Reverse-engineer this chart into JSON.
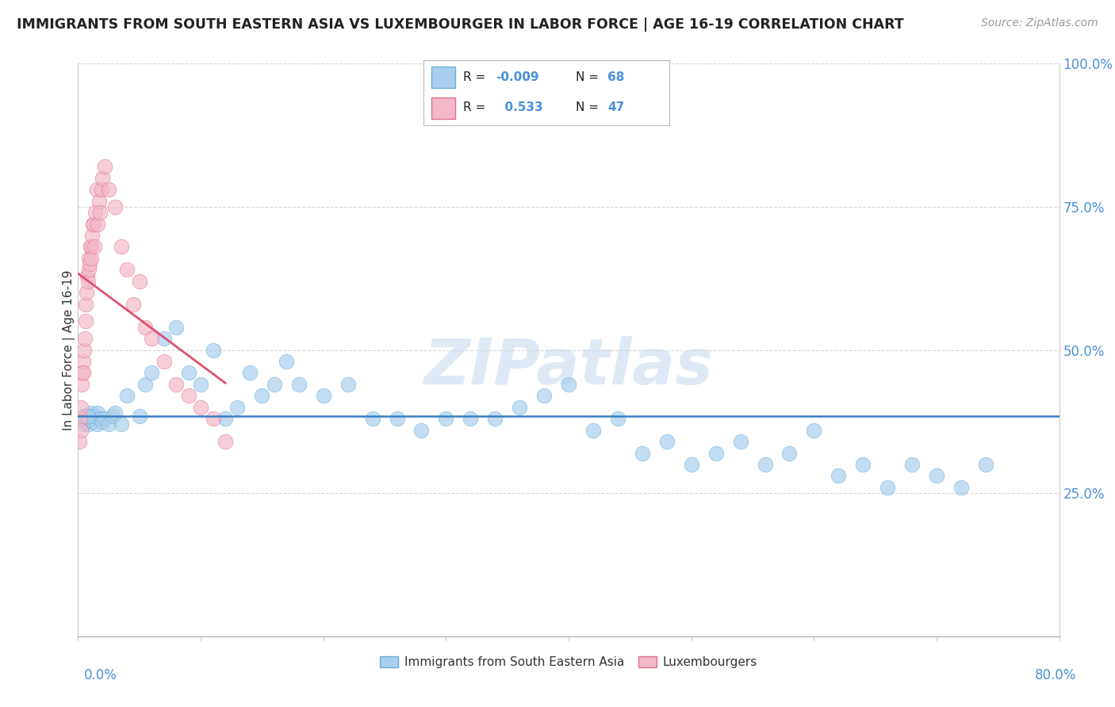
{
  "title": "IMMIGRANTS FROM SOUTH EASTERN ASIA VS LUXEMBOURGER IN LABOR FORCE | AGE 16-19 CORRELATION CHART",
  "source": "Source: ZipAtlas.com",
  "ylabel": "In Labor Force | Age 16-19",
  "watermark": "ZIPatlas",
  "xlim": [
    0.0,
    80.0
  ],
  "ylim": [
    0.0,
    100.0
  ],
  "blue_R": -0.009,
  "blue_N": 68,
  "pink_R": 0.533,
  "pink_N": 47,
  "blue_color": "#aacfee",
  "pink_color": "#f4b8c8",
  "blue_edge_color": "#6aaed6",
  "pink_edge_color": "#e07090",
  "blue_line_color": "#3a7fc1",
  "pink_line_color": "#e05070",
  "legend_label_blue": "Immigrants from South Eastern Asia",
  "legend_label_pink": "Luxembourgers",
  "blue_x": [
    0.3,
    0.4,
    0.5,
    0.6,
    0.7,
    0.8,
    0.9,
    1.0,
    1.1,
    1.2,
    1.3,
    1.5,
    1.6,
    1.8,
    2.0,
    2.2,
    2.5,
    2.8,
    3.0,
    3.5,
    4.0,
    5.0,
    5.5,
    6.0,
    7.0,
    8.0,
    9.0,
    10.0,
    11.0,
    12.0,
    13.0,
    14.0,
    15.0,
    16.0,
    17.0,
    18.0,
    20.0,
    22.0,
    24.0,
    26.0,
    28.0,
    30.0,
    32.0,
    34.0,
    36.0,
    38.0,
    40.0,
    42.0,
    44.0,
    46.0,
    48.0,
    50.0,
    52.0,
    54.0,
    56.0,
    58.0,
    60.0,
    62.0,
    64.0,
    66.0,
    68.0,
    70.0,
    72.0,
    74.0,
    0.5,
    0.6,
    0.7,
    0.8
  ],
  "blue_y": [
    38.0,
    37.0,
    38.5,
    37.5,
    38.0,
    38.5,
    37.0,
    38.0,
    39.0,
    37.5,
    38.5,
    37.0,
    39.0,
    38.0,
    37.5,
    38.0,
    37.0,
    38.5,
    39.0,
    37.0,
    42.0,
    38.5,
    44.0,
    46.0,
    52.0,
    54.0,
    46.0,
    44.0,
    50.0,
    38.0,
    40.0,
    46.0,
    42.0,
    44.0,
    48.0,
    44.0,
    42.0,
    44.0,
    38.0,
    38.0,
    36.0,
    38.0,
    38.0,
    38.0,
    40.0,
    42.0,
    44.0,
    36.0,
    38.0,
    32.0,
    34.0,
    30.0,
    32.0,
    34.0,
    30.0,
    32.0,
    36.0,
    28.0,
    30.0,
    26.0,
    30.0,
    28.0,
    26.0,
    30.0,
    38.5,
    38.5,
    38.5,
    38.5
  ],
  "pink_x": [
    0.1,
    0.15,
    0.2,
    0.25,
    0.3,
    0.35,
    0.4,
    0.45,
    0.5,
    0.55,
    0.6,
    0.65,
    0.7,
    0.75,
    0.8,
    0.85,
    0.9,
    0.95,
    1.0,
    1.05,
    1.1,
    1.15,
    1.2,
    1.25,
    1.3,
    1.4,
    1.5,
    1.6,
    1.7,
    1.8,
    1.9,
    2.0,
    2.2,
    2.5,
    3.0,
    3.5,
    4.0,
    4.5,
    5.0,
    5.5,
    6.0,
    7.0,
    8.0,
    9.0,
    10.0,
    11.0,
    12.0
  ],
  "pink_y": [
    34.0,
    38.0,
    36.0,
    40.0,
    44.0,
    46.0,
    48.0,
    46.0,
    50.0,
    52.0,
    55.0,
    58.0,
    60.0,
    63.0,
    62.0,
    64.0,
    66.0,
    65.0,
    68.0,
    68.0,
    66.0,
    70.0,
    72.0,
    72.0,
    68.0,
    74.0,
    78.0,
    72.0,
    76.0,
    74.0,
    78.0,
    80.0,
    82.0,
    78.0,
    75.0,
    68.0,
    64.0,
    58.0,
    62.0,
    54.0,
    52.0,
    48.0,
    44.0,
    42.0,
    40.0,
    38.0,
    34.0
  ],
  "pink_trend_x0": 0.0,
  "pink_trend_x1": 12.0,
  "blue_trend_y": 38.5
}
